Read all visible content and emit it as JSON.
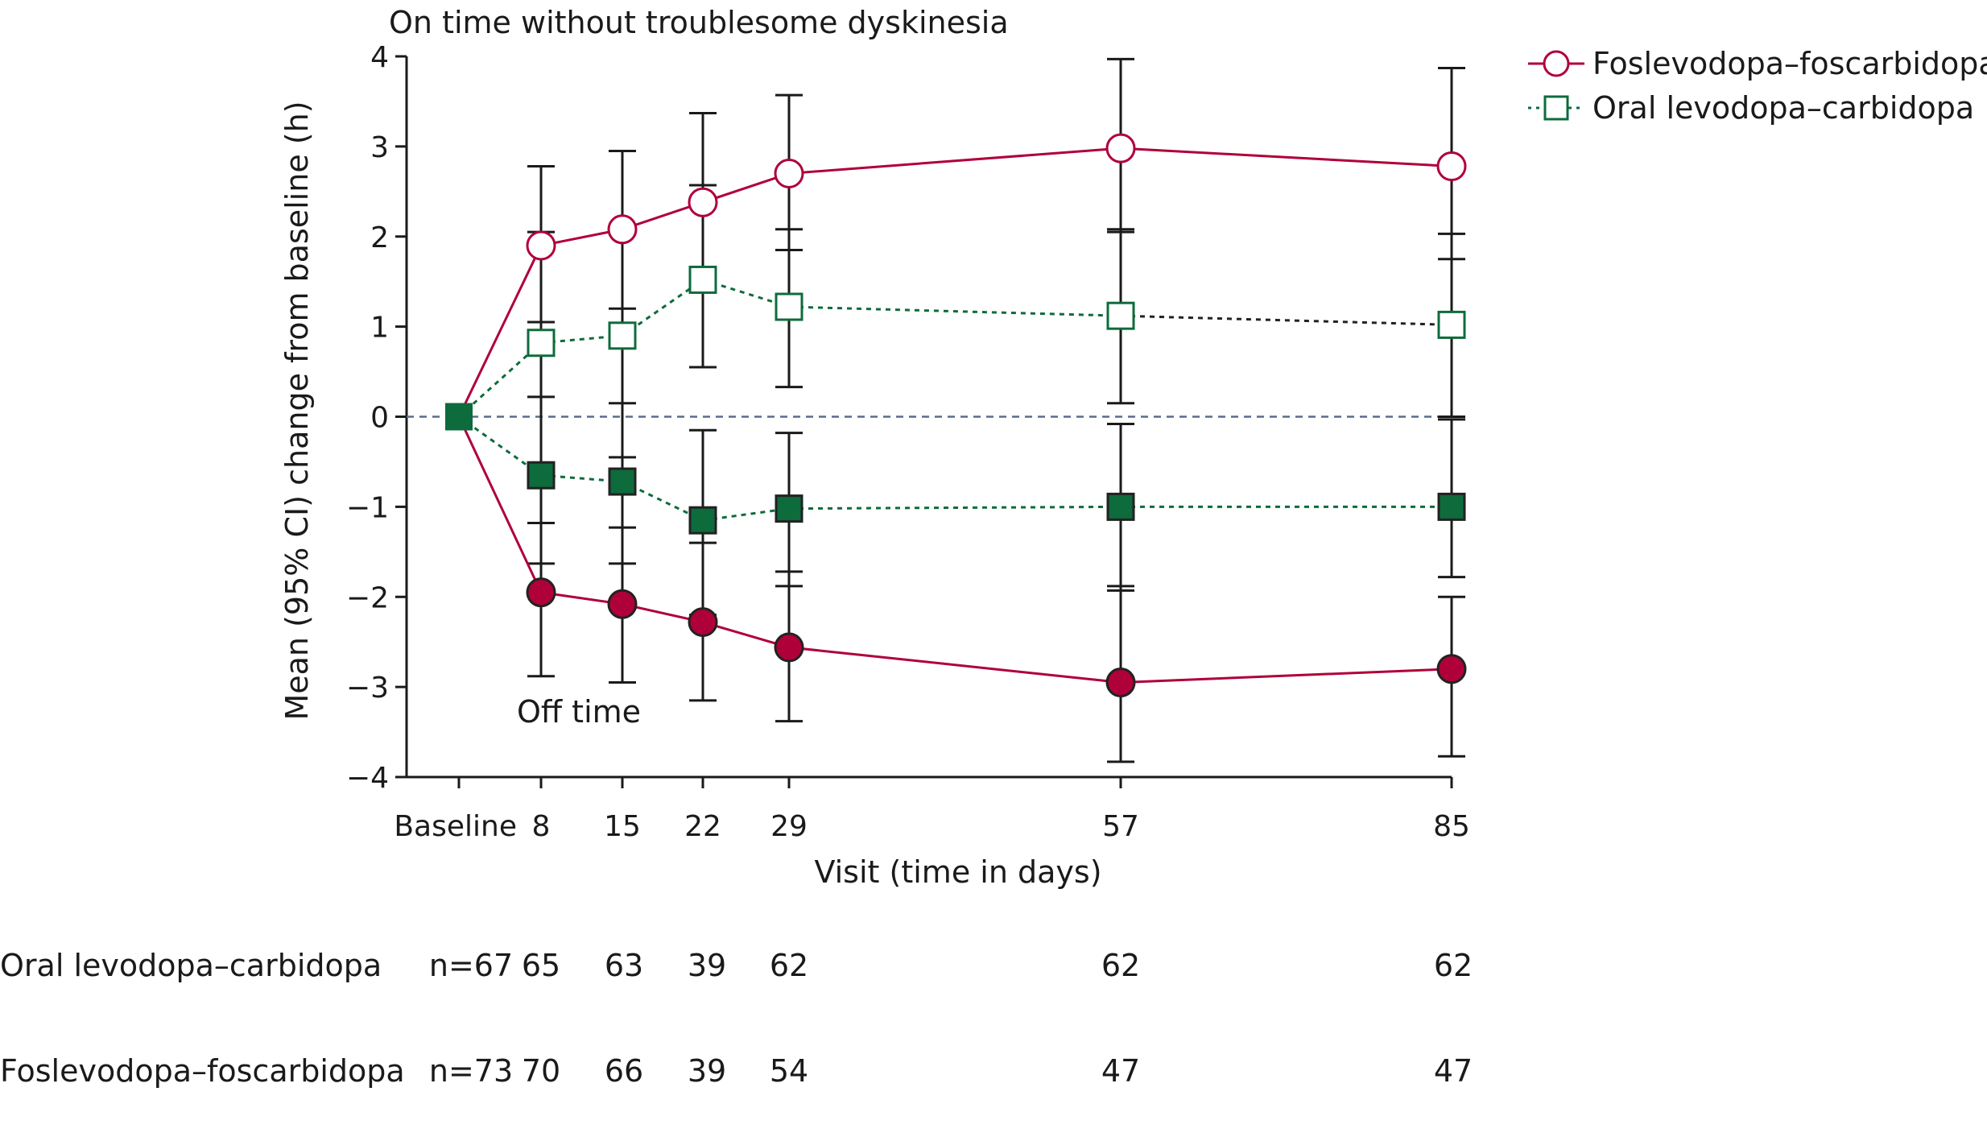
{
  "chart_data": {
    "type": "line",
    "title": "On time without troublesome dyskinesia",
    "xlabel": "Visit (time in days)",
    "ylabel": "Mean (95% CI) change from baseline (h)",
    "ylim": [
      -4,
      4
    ],
    "y_ticks": [
      4,
      3,
      2,
      1,
      0,
      -1,
      -2,
      -3,
      -4
    ],
    "y_tick_labels": [
      "4",
      "3",
      "2",
      "1",
      "0",
      "−1",
      "−2",
      "−3",
      "−4"
    ],
    "x": [
      0,
      8,
      15,
      22,
      29,
      57,
      85
    ],
    "x_tick_labels": [
      "Baseline",
      "8",
      "15",
      "22",
      "29",
      "57",
      "85"
    ],
    "reference_line_y": 0,
    "series": [
      {
        "name": "Foslevodopa–foscarbidopa",
        "outcome": "On time without troublesome dyskinesia",
        "values": [
          0,
          1.9,
          2.08,
          2.38,
          2.7,
          2.98,
          2.78
        ],
        "ci_lower": [
          null,
          1.05,
          1.2,
          1.4,
          1.85,
          2.05,
          1.75
        ],
        "ci_upper": [
          null,
          2.78,
          2.95,
          3.37,
          3.57,
          3.97,
          3.87
        ]
      },
      {
        "name": "Oral levodopa–carbidopa",
        "outcome": "On time without troublesome dyskinesia",
        "values": [
          0,
          0.82,
          0.9,
          1.52,
          1.22,
          1.12,
          1.02
        ],
        "ci_lower": [
          null,
          -0.55,
          -0.45,
          0.55,
          0.33,
          0.15,
          0.0
        ],
        "ci_upper": [
          null,
          2.05,
          2.05,
          2.57,
          2.08,
          2.08,
          2.03
        ]
      },
      {
        "name": "Oral levodopa–carbidopa",
        "outcome": "Off time",
        "values": [
          0,
          -0.65,
          -0.72,
          -1.15,
          -1.02,
          -1.0,
          -1.0
        ],
        "ci_lower": [
          null,
          -1.63,
          -1.63,
          -2.2,
          -1.88,
          -1.93,
          -1.78
        ],
        "ci_upper": [
          null,
          0.22,
          0.15,
          -0.15,
          -0.18,
          -0.08,
          -0.03
        ]
      },
      {
        "name": "Foslevodopa–foscarbidopa",
        "outcome": "Off time",
        "values": [
          0,
          -1.95,
          -2.08,
          -2.28,
          -2.56,
          -2.95,
          -2.8
        ],
        "ci_lower": [
          null,
          -2.88,
          -2.95,
          -3.15,
          -3.38,
          -3.83,
          -3.77
        ],
        "ci_upper": [
          null,
          -1.18,
          -1.23,
          -1.4,
          -1.72,
          -1.88,
          -2.0
        ]
      }
    ],
    "annotations": [
      "Off time"
    ],
    "legend": {
      "placement": "top-right",
      "entries": [
        {
          "label": "Foslevodopa–foscarbidopa",
          "marker": "open-circle",
          "line": "solid"
        },
        {
          "label": "Oral levodopa–carbidopa",
          "marker": "open-square",
          "line": "dotted"
        }
      ]
    },
    "n_table": {
      "rows": [
        {
          "label": "Oral levodopa–carbidopa",
          "values": [
            "n=67",
            "65",
            "63",
            "39",
            "62",
            "62",
            "62"
          ]
        },
        {
          "label": "Foslevodopa–foscarbidopa",
          "values": [
            "n=73",
            "70",
            "66",
            "39",
            "54",
            "47",
            "47"
          ]
        }
      ]
    }
  },
  "colors": {
    "fos": "#b0003a",
    "oral": "#0e6b3c",
    "axis": "#1a1a1a",
    "reference": "#5b6b8c"
  }
}
